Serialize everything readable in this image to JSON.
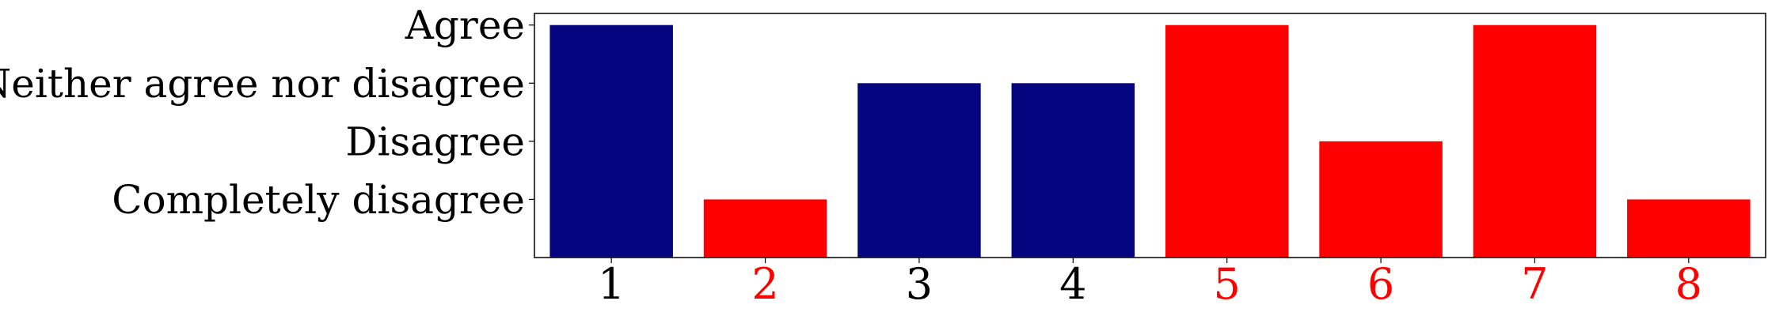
{
  "chart_data": {
    "type": "bar",
    "categories": [
      "1",
      "2",
      "3",
      "4",
      "5",
      "6",
      "7",
      "8"
    ],
    "values": [
      4,
      1,
      3,
      3,
      4,
      2,
      4,
      1
    ],
    "y_tick_values": [
      1,
      2,
      3,
      4
    ],
    "y_tick_labels": [
      "Completely disagree",
      "Disagree",
      "Neither agree nor disagree",
      "Agree"
    ],
    "ylim": [
      0,
      4.2
    ],
    "title": "",
    "xlabel": "",
    "ylabel": "",
    "grid": false,
    "legend": "none",
    "bar_colors": [
      "#05057f",
      "#ff0000",
      "#05057f",
      "#05057f",
      "#ff0000",
      "#ff0000",
      "#ff0000",
      "#ff0000"
    ],
    "x_label_colors": [
      "#000000",
      "#ff0000",
      "#000000",
      "#000000",
      "#ff0000",
      "#ff0000",
      "#ff0000",
      "#ff0000"
    ]
  }
}
